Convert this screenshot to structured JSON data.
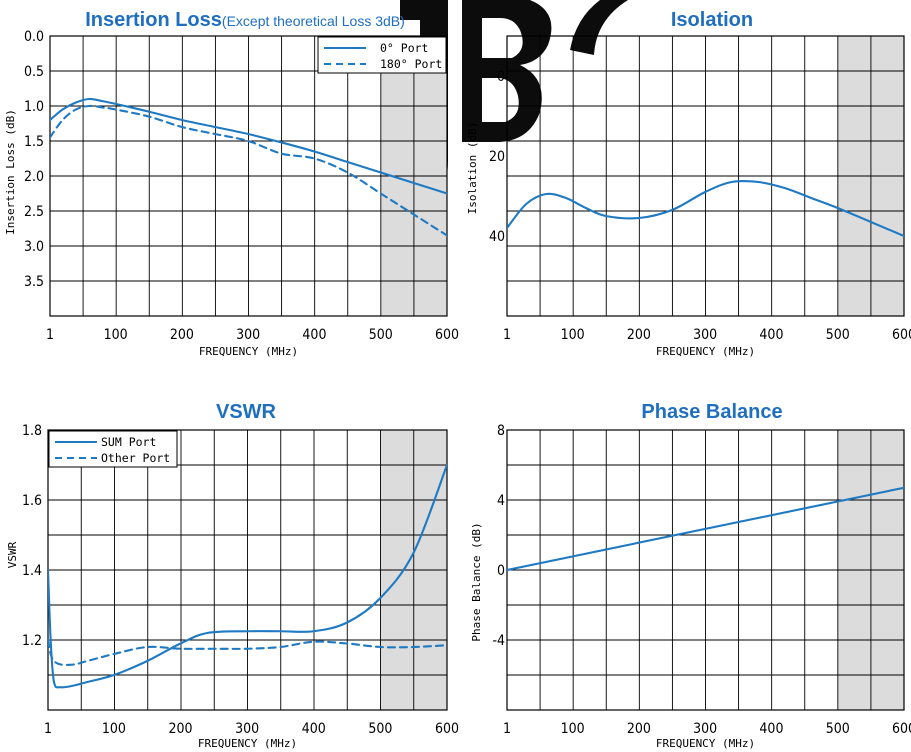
{
  "colors": {
    "line": "#1f7ac4",
    "title": "#1f6fc0",
    "shade": "#dcdcdc"
  },
  "chart_data": [
    {
      "id": "insertion",
      "type": "line",
      "title": "Insertion Loss",
      "subtitle": "(Except theoretical Loss 3dB)",
      "xlabel": "FREQUENCY (MHz)",
      "ylabel": "Insertion Loss (dB)",
      "xlim": [
        1,
        600
      ],
      "ylim": [
        0,
        4
      ],
      "y_inverted": true,
      "x_ticks": [
        "1",
        "100",
        "200",
        "300",
        "400",
        "500",
        "600"
      ],
      "y_ticks": [
        "0.0",
        "0.5",
        "1.0",
        "1.5",
        "2.0",
        "2.5",
        "3.0",
        "3.5"
      ],
      "shaded_x_range": [
        500,
        600
      ],
      "grid": true,
      "legend_position": "top-right",
      "series": [
        {
          "name": "0°  Port",
          "style": "solid",
          "x": [
            1,
            20,
            40,
            60,
            80,
            100,
            150,
            200,
            250,
            300,
            350,
            400,
            450,
            500,
            550,
            600
          ],
          "y": [
            1.2,
            1.05,
            0.95,
            0.9,
            0.93,
            0.97,
            1.08,
            1.2,
            1.3,
            1.4,
            1.52,
            1.65,
            1.8,
            1.95,
            2.1,
            2.25
          ]
        },
        {
          "name": "180°  Port",
          "style": "dashed",
          "x": [
            1,
            20,
            40,
            60,
            80,
            100,
            150,
            200,
            250,
            300,
            350,
            400,
            450,
            500,
            550,
            600
          ],
          "y": [
            1.45,
            1.2,
            1.05,
            1.0,
            1.02,
            1.05,
            1.15,
            1.3,
            1.4,
            1.5,
            1.68,
            1.75,
            1.95,
            2.25,
            2.55,
            2.85
          ]
        }
      ]
    },
    {
      "id": "isolation",
      "type": "line",
      "title": "Isolation",
      "xlabel": "FREQUENCY (MHz)",
      "ylabel": "Isolation (dB)",
      "xlim": [
        1,
        600
      ],
      "ylim": [
        -10,
        60
      ],
      "y_inverted": true,
      "x_ticks": [
        "1",
        "100",
        "200",
        "300",
        "400",
        "500",
        "600"
      ],
      "y_ticks": [
        "0",
        "20",
        "40"
      ],
      "y_tick_values": [
        0,
        20,
        40
      ],
      "shaded_x_range": [
        500,
        600
      ],
      "grid": true,
      "series": [
        {
          "name": "",
          "style": "solid",
          "x": [
            1,
            30,
            60,
            90,
            120,
            150,
            200,
            250,
            300,
            340,
            380,
            420,
            460,
            500,
            550,
            600
          ],
          "y": [
            38,
            32,
            29.5,
            30.5,
            33,
            35,
            35.5,
            33.5,
            29,
            26.5,
            26.5,
            28,
            30.5,
            33,
            36.5,
            40
          ]
        }
      ]
    },
    {
      "id": "vswr",
      "type": "line",
      "title": "VSWR",
      "xlabel": "FREQUENCY (MHz)",
      "ylabel": "VSWR",
      "xlim": [
        1,
        600
      ],
      "ylim": [
        1.0,
        1.8
      ],
      "x_ticks": [
        "1",
        "100",
        "200",
        "300",
        "400",
        "500",
        "600"
      ],
      "y_ticks": [
        "1.8",
        "1.6",
        "1.4",
        "1.2"
      ],
      "y_tick_values": [
        1.8,
        1.6,
        1.4,
        1.2
      ],
      "shaded_x_range": [
        500,
        600
      ],
      "grid": true,
      "legend_position": "top-left",
      "series": [
        {
          "name": "SUM Port",
          "style": "solid",
          "x": [
            1,
            5,
            10,
            20,
            40,
            60,
            100,
            150,
            200,
            240,
            300,
            350,
            400,
            450,
            500,
            550,
            600
          ],
          "y": [
            1.4,
            1.2,
            1.08,
            1.065,
            1.07,
            1.08,
            1.1,
            1.14,
            1.19,
            1.22,
            1.225,
            1.225,
            1.225,
            1.25,
            1.32,
            1.45,
            1.7
          ]
        },
        {
          "name": "Other Port",
          "style": "dashed",
          "x": [
            1,
            5,
            10,
            20,
            40,
            60,
            100,
            150,
            200,
            250,
            300,
            350,
            400,
            450,
            500,
            550,
            600
          ],
          "y": [
            1.2,
            1.16,
            1.14,
            1.13,
            1.13,
            1.14,
            1.16,
            1.18,
            1.175,
            1.175,
            1.175,
            1.18,
            1.195,
            1.19,
            1.18,
            1.18,
            1.185
          ]
        }
      ]
    },
    {
      "id": "phase",
      "type": "line",
      "title": "Phase Balance",
      "xlabel": "FREQUENCY (MHz)",
      "ylabel": "Phase Balance (dB)",
      "xlim": [
        1,
        600
      ],
      "ylim": [
        -8,
        8
      ],
      "x_ticks": [
        "1",
        "100",
        "200",
        "300",
        "400",
        "500",
        "600"
      ],
      "y_ticks": [
        "8",
        "4",
        "0",
        "-4"
      ],
      "y_tick_values": [
        8,
        4,
        0,
        -4
      ],
      "shaded_x_range": [
        500,
        600
      ],
      "grid": true,
      "series": [
        {
          "name": "",
          "style": "solid",
          "x": [
            1,
            600
          ],
          "y": [
            0,
            4.7
          ]
        }
      ]
    }
  ]
}
